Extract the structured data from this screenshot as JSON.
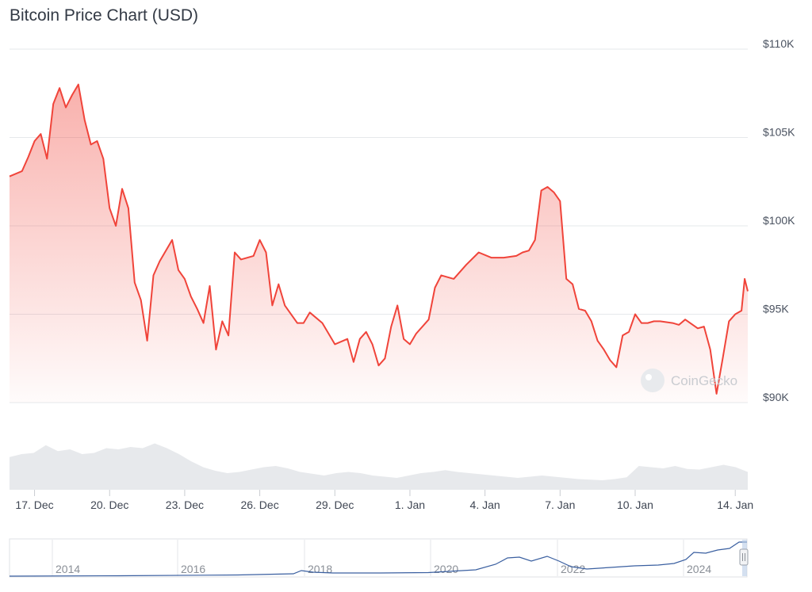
{
  "title": "Bitcoin Price Chart (USD)",
  "watermark": "CoinGecko",
  "colors": {
    "price_line": "#f0443a",
    "volume": "#e7e9ec",
    "navigator_line": "#3a5fa0",
    "grid": "#e6e8eb"
  },
  "chart_data": {
    "type": "area",
    "title": "Bitcoin Price Chart (USD)",
    "ylabel": "",
    "xlabel": "",
    "y_ticks": [
      "$90K",
      "$95K",
      "$100K",
      "$105K",
      "$110K"
    ],
    "ylim": [
      90000,
      110000
    ],
    "x_ticks": [
      "17. Dec",
      "20. Dec",
      "23. Dec",
      "26. Dec",
      "29. Dec",
      "1. Jan",
      "4. Jan",
      "7. Jan",
      "10. Jan",
      "14. Jan"
    ],
    "xlim": [
      "2024-12-16",
      "2025-01-14T12:00"
    ],
    "grid": true,
    "series": [
      {
        "x": [
          "2024-12-16T00:00",
          "2024-12-16T12:00",
          "2024-12-16T18:00",
          "2024-12-17T00:00",
          "2024-12-17T06:00",
          "2024-12-17T12:00",
          "2024-12-17T18:00",
          "2024-12-18T00:00",
          "2024-12-18T06:00",
          "2024-12-18T12:00",
          "2024-12-18T18:00",
          "2024-12-19T00:00",
          "2024-12-19T06:00",
          "2024-12-19T12:00",
          "2024-12-19T18:00",
          "2024-12-20T00:00",
          "2024-12-20T06:00",
          "2024-12-20T12:00",
          "2024-12-20T18:00",
          "2024-12-21T00:00",
          "2024-12-21T06:00",
          "2024-12-21T12:00",
          "2024-12-21T18:00",
          "2024-12-22T00:00",
          "2024-12-22T12:00",
          "2024-12-22T18:00",
          "2024-12-23T00:00",
          "2024-12-23T06:00",
          "2024-12-23T12:00",
          "2024-12-23T18:00",
          "2024-12-24T00:00",
          "2024-12-24T06:00",
          "2024-12-24T12:00",
          "2024-12-24T18:00",
          "2024-12-25T00:00",
          "2024-12-25T06:00",
          "2024-12-25T18:00",
          "2024-12-26T00:00",
          "2024-12-26T06:00",
          "2024-12-26T12:00",
          "2024-12-26T18:00",
          "2024-12-27T00:00",
          "2024-12-27T12:00",
          "2024-12-27T18:00",
          "2024-12-28T00:00",
          "2024-12-28T12:00",
          "2024-12-29T00:00",
          "2024-12-29T12:00",
          "2024-12-29T18:00",
          "2024-12-30T00:00",
          "2024-12-30T06:00",
          "2024-12-30T12:00",
          "2024-12-30T18:00",
          "2024-12-31T00:00",
          "2024-12-31T06:00",
          "2024-12-31T12:00",
          "2024-12-31T18:00",
          "2025-01-01T00:00",
          "2025-01-01T06:00",
          "2025-01-01T18:00",
          "2025-01-02T00:00",
          "2025-01-02T06:00",
          "2025-01-02T18:00",
          "2025-01-03T06:00",
          "2025-01-03T18:00",
          "2025-01-04T06:00",
          "2025-01-04T18:00",
          "2025-01-05T06:00",
          "2025-01-05T12:00",
          "2025-01-05T18:00",
          "2025-01-06T00:00",
          "2025-01-06T06:00",
          "2025-01-06T12:00",
          "2025-01-06T18:00",
          "2025-01-07T00:00",
          "2025-01-07T06:00",
          "2025-01-07T12:00",
          "2025-01-07T18:00",
          "2025-01-08T00:00",
          "2025-01-08T06:00",
          "2025-01-08T12:00",
          "2025-01-08T18:00",
          "2025-01-09T00:00",
          "2025-01-09T06:00",
          "2025-01-09T12:00",
          "2025-01-09T18:00",
          "2025-01-10T00:00",
          "2025-01-10T06:00",
          "2025-01-10T12:00",
          "2025-01-10T18:00",
          "2025-01-11T00:00",
          "2025-01-11T12:00",
          "2025-01-11T18:00",
          "2025-01-12T00:00",
          "2025-01-12T12:00",
          "2025-01-12T18:00",
          "2025-01-13T00:00",
          "2025-01-13T06:00",
          "2025-01-13T12:00",
          "2025-01-13T18:00",
          "2025-01-14T00:00",
          "2025-01-14T06:00",
          "2025-01-14T09:00",
          "2025-01-14T12:00"
        ],
        "y": [
          102800,
          103100,
          103900,
          104800,
          105200,
          103800,
          106900,
          107800,
          106700,
          107400,
          108000,
          106000,
          104600,
          104800,
          103800,
          101000,
          100000,
          102100,
          101000,
          96800,
          95800,
          93500,
          97200,
          98000,
          99200,
          97500,
          97000,
          96000,
          95300,
          94500,
          96600,
          93000,
          94600,
          93800,
          98500,
          98100,
          98300,
          99200,
          98500,
          95500,
          96700,
          95500,
          94500,
          94500,
          95100,
          94500,
          93300,
          93600,
          92300,
          93600,
          94000,
          93300,
          92100,
          92500,
          94300,
          95500,
          93600,
          93300,
          93900,
          94700,
          96500,
          97200,
          97000,
          97800,
          98500,
          98200,
          98200,
          98300,
          98500,
          98600,
          99200,
          102000,
          102200,
          101900,
          101400,
          97000,
          96700,
          95300,
          95200,
          94600,
          93500,
          93000,
          92400,
          92000,
          93800,
          94000,
          95000,
          94500,
          94500,
          94600,
          94600,
          94500,
          94400,
          94700,
          94200,
          94300,
          93000,
          90500,
          92500,
          94600,
          95000,
          95200,
          97000,
          96300
        ]
      }
    ],
    "volume": [
      0.55,
      0.6,
      0.62,
      0.75,
      0.65,
      0.68,
      0.6,
      0.62,
      0.7,
      0.68,
      0.72,
      0.7,
      0.78,
      0.7,
      0.6,
      0.48,
      0.38,
      0.32,
      0.28,
      0.3,
      0.34,
      0.38,
      0.4,
      0.36,
      0.3,
      0.27,
      0.24,
      0.28,
      0.3,
      0.28,
      0.24,
      0.22,
      0.2,
      0.24,
      0.28,
      0.3,
      0.33,
      0.3,
      0.28,
      0.26,
      0.24,
      0.22,
      0.2,
      0.22,
      0.24,
      0.22,
      0.2,
      0.18,
      0.17,
      0.16,
      0.18,
      0.21,
      0.4,
      0.38,
      0.36,
      0.4,
      0.35,
      0.34,
      0.38,
      0.42,
      0.38,
      0.3
    ],
    "navigator": {
      "x_ticks": [
        "2014",
        "2016",
        "2018",
        "2020",
        "2022",
        "2024"
      ]
    }
  }
}
